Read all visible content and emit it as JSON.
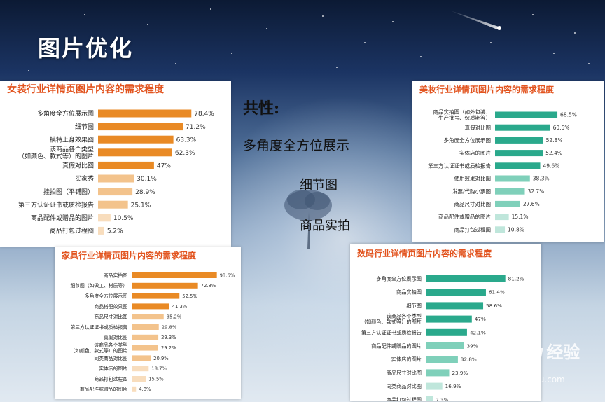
{
  "page": {
    "title": "图片优化"
  },
  "common": {
    "heading": "共性:",
    "items": [
      "多角度全方位展示",
      "细节图",
      "商品实拍"
    ]
  },
  "watermark": {
    "brand": "Baidu",
    "sub": "经验",
    "url": "jingyan.baidu.com"
  },
  "colors": {
    "orange_dark": "#e98a25",
    "orange_light": "#f3c38c",
    "orange_pale": "#f8ddbd",
    "teal_dark": "#2aa98c",
    "teal_light": "#7fd0ba",
    "teal_pale": "#bfe6db",
    "title_red": "#e2541f"
  },
  "chart_data": [
    {
      "id": "apparel",
      "type": "bar",
      "orientation": "horizontal",
      "title": "女装行业详情页图片内容的需求程度",
      "categories": [
        "多角度全方位展示图",
        "细节图",
        "模特上身效果图",
        "该商品各个类型\n（如颜色、款式等）的图片",
        "真假对比图",
        "买家秀",
        "挂拍图（平铺图）",
        "第三方认证证书或质检报告",
        "商品配件或赠品的图片",
        "商品打包过程图"
      ],
      "values": [
        78.4,
        71.2,
        63.3,
        62.3,
        47,
        30.1,
        28.9,
        25.1,
        10.5,
        5.2
      ],
      "labels": [
        "78.4%",
        "71.2%",
        "63.3%",
        "62.3%",
        "47%",
        "30.1%",
        "28.9%",
        "25.1%",
        "10.5%",
        "5.2%"
      ],
      "xlim": [
        0,
        100
      ],
      "palette": "orange"
    },
    {
      "id": "beauty",
      "type": "bar",
      "orientation": "horizontal",
      "title": "美妆行业详情页图片内容的需求程度",
      "categories": [
        "商品实拍图（如外包装、\n生产批号、保质期等）",
        "真假对比图",
        "多角度全方位展示图",
        "实体店的图片",
        "第三方认证证书或质检报告",
        "使用效果对比图",
        "发票/代购小票图",
        "商品尺寸对比图",
        "商品配件或赠品的图片",
        "商品打包过程图"
      ],
      "values": [
        68.5,
        60.5,
        52.8,
        52.4,
        49.6,
        38.3,
        32.7,
        27.6,
        15.1,
        10.8
      ],
      "labels": [
        "68.5%",
        "60.5%",
        "52.8%",
        "52.4%",
        "49.6%",
        "38.3%",
        "32.7%",
        "27.6%",
        "15.1%",
        "10.8%"
      ],
      "xlim": [
        0,
        100
      ],
      "palette": "teal"
    },
    {
      "id": "furniture",
      "type": "bar",
      "orientation": "horizontal",
      "title": "家具行业详情页图片内容的需求程度",
      "categories": [
        "商品实拍图",
        "细节图（如做工、材质等）",
        "多角度全方位展示图",
        "商品搭配效果图",
        "商品尺寸对比图",
        "第三方认证证书或质检报告",
        "真假对比图",
        "该商品各个类型\n（如颜色、款式等）的图片",
        "同类商品对比图",
        "实体店的图片",
        "商品打包过程图",
        "商品配件或赠品的图片"
      ],
      "values": [
        93.6,
        72.8,
        52.5,
        41.3,
        35.2,
        29.8,
        29.3,
        29.2,
        20.9,
        18.7,
        15.5,
        4.8
      ],
      "labels": [
        "93.6%",
        "72.8%",
        "52.5%",
        "41.3%",
        "35.2%",
        "29.8%",
        "29.3%",
        "29.2%",
        "20.9%",
        "18.7%",
        "15.5%",
        "4.8%"
      ],
      "xlim": [
        0,
        100
      ],
      "palette": "orange"
    },
    {
      "id": "digital",
      "type": "bar",
      "orientation": "horizontal",
      "title": "数码行业详情页图片内容的需求程度",
      "categories": [
        "多角度全方位展示图",
        "商品实拍图",
        "细节图",
        "该商品各个类型\n（如颜色、款式等）的图片",
        "第三方认证证书或质检报告",
        "商品配件或赠品的图片",
        "实体店的图片",
        "商品尺寸对比图",
        "同类商品对比图",
        "商品打包过程图"
      ],
      "values": [
        81.2,
        61.4,
        58.6,
        47,
        42.1,
        39,
        32.8,
        23.9,
        16.9,
        7.3
      ],
      "labels": [
        "81.2%",
        "61.4%",
        "58.6%",
        "47%",
        "42.1%",
        "39%",
        "32.8%",
        "23.9%",
        "16.9%",
        "7.3%"
      ],
      "xlim": [
        0,
        100
      ],
      "palette": "teal"
    }
  ]
}
